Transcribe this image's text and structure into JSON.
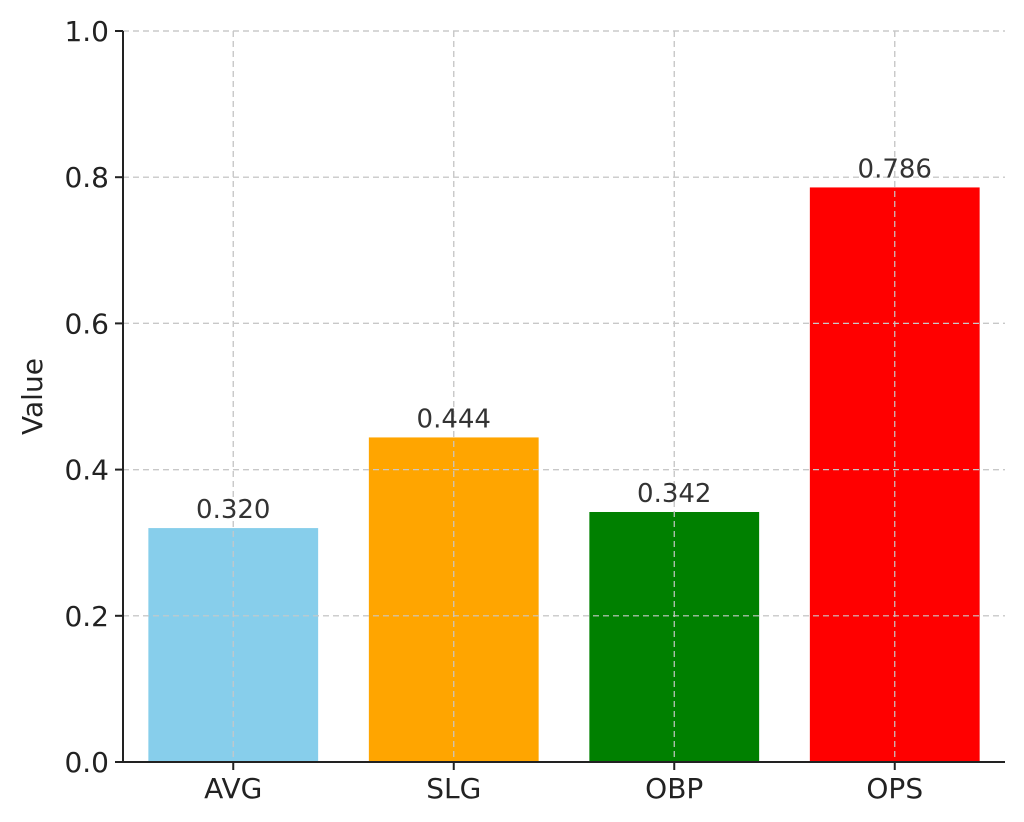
{
  "chart_data": {
    "type": "bar",
    "title": "",
    "xlabel": "",
    "ylabel": "Value",
    "categories": [
      "AVG",
      "SLG",
      "OBP",
      "OPS"
    ],
    "values": [
      0.32,
      0.444,
      0.342,
      0.786
    ],
    "value_labels": [
      "0.320",
      "0.444",
      "0.342",
      "0.786"
    ],
    "colors": [
      "#87ceeb",
      "#ffa500",
      "#008000",
      "#ff0000"
    ],
    "ylim": [
      0,
      1.0
    ],
    "yticks": [
      0.0,
      0.2,
      0.4,
      0.6,
      0.8,
      1.0
    ],
    "ytick_labels": [
      "0.0",
      "0.2",
      "0.4",
      "0.6",
      "0.8",
      "1.0"
    ],
    "grid": true
  }
}
